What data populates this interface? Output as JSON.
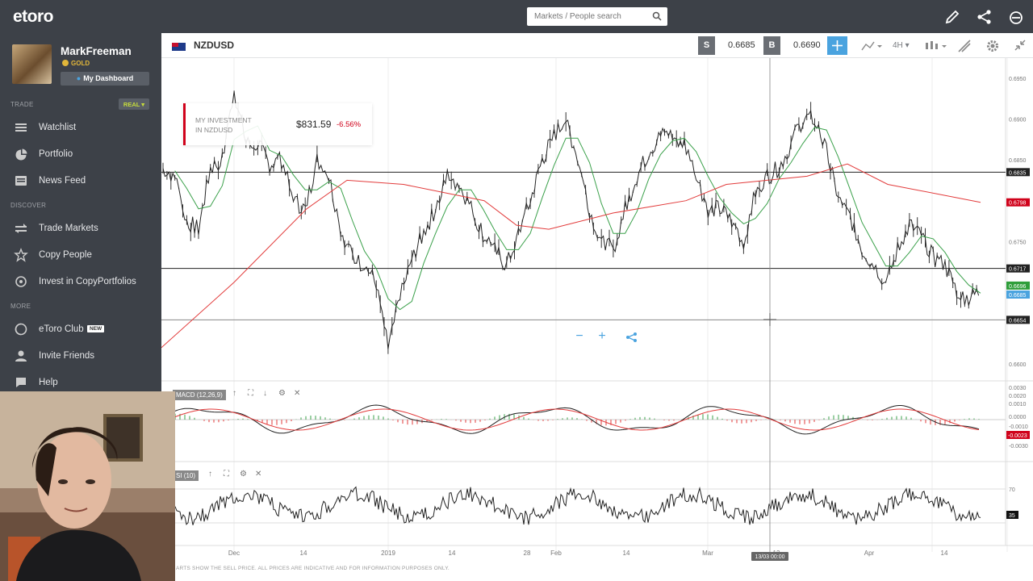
{
  "app": {
    "logo": "etoro"
  },
  "search": {
    "placeholder": "Markets / People search"
  },
  "topbar": {
    "icons": [
      "edit-icon",
      "share-icon",
      "etoro-icon"
    ]
  },
  "user": {
    "name": "MarkFreeman",
    "tier": "GOLD",
    "dashboard_label": "My Dashboard"
  },
  "sidebar": {
    "trade_section": "TRADE",
    "account_mode": "REAL",
    "discover_section": "DISCOVER",
    "more_section": "MORE",
    "items": [
      {
        "label": "Watchlist",
        "icon": "watchlist-icon"
      },
      {
        "label": "Portfolio",
        "icon": "pie-chart-icon"
      },
      {
        "label": "News Feed",
        "icon": "news-icon"
      },
      {
        "label": "Trade Markets",
        "icon": "trade-markets-icon"
      },
      {
        "label": "Copy People",
        "icon": "star-icon"
      },
      {
        "label": "Invest in CopyPortfolios",
        "icon": "copyportfolio-icon"
      },
      {
        "label": "eToro Club",
        "icon": "club-icon",
        "badge": "NEW"
      },
      {
        "label": "Invite Friends",
        "icon": "invite-icon"
      },
      {
        "label": "Help",
        "icon": "help-icon"
      }
    ]
  },
  "instrument": {
    "symbol": "NZDUSD",
    "sell_label": "S",
    "sell_price": "0.6685",
    "buy_label": "B",
    "buy_price": "0.6690",
    "timeframe": "4H"
  },
  "investment": {
    "label_line1": "MY INVESTMENT",
    "label_line2": "IN NZDUSD",
    "value": "$831.59",
    "change": "-6.56%"
  },
  "indicators": {
    "macd_label": "MACD (12,26,9)",
    "rsi_label": "SI (10)"
  },
  "disclaimer": "ARTS SHOW THE SELL PRICE. ALL PRICES ARE INDICATIVE AND FOR INFORMATION PURPOSES ONLY.",
  "chart_data": {
    "type": "line",
    "title": "",
    "price_axis_ticks": [
      "0.6950",
      "0.6900",
      "0.6850",
      "0.6750",
      "0.6600"
    ],
    "price_tags": [
      {
        "value": "0.6835",
        "color": "#222222"
      },
      {
        "value": "0.6798",
        "color": "#d0021b"
      },
      {
        "value": "0.6717",
        "color": "#222222"
      },
      {
        "value": "0.6696",
        "color": "#2e9e3a"
      },
      {
        "value": "0.6685",
        "color": "#4aa3df"
      },
      {
        "value": "0.6654",
        "color": "#222222"
      }
    ],
    "macd_ticks": [
      "0.0030",
      "0.0020",
      "0.0010",
      "0.0000",
      "-0.0010",
      "-0.0030"
    ],
    "macd_tag": "-0.0023",
    "rsi_ticks": [
      "70"
    ],
    "rsi_tag": "35",
    "x_ticks": [
      "Dec",
      "14",
      "2019",
      "14",
      "28",
      "Feb",
      "14",
      "Mar",
      "13",
      "Apr",
      "14"
    ],
    "crosshair_time": "13/03 00:00",
    "price": [
      0.684,
      0.683,
      0.6775,
      0.6765,
      0.684,
      0.685,
      0.6935,
      0.687,
      0.687,
      0.6845,
      0.685,
      0.68,
      0.679,
      0.685,
      0.683,
      0.6765,
      0.673,
      0.672,
      0.67,
      0.662,
      0.668,
      0.673,
      0.676,
      0.679,
      0.683,
      0.682,
      0.679,
      0.676,
      0.674,
      0.672,
      0.676,
      0.68,
      0.685,
      0.688,
      0.69,
      0.685,
      0.679,
      0.675,
      0.674,
      0.679,
      0.683,
      0.686,
      0.688,
      0.688,
      0.687,
      0.683,
      0.679,
      0.679,
      0.6775,
      0.675,
      0.681,
      0.683,
      0.684,
      0.687,
      0.69,
      0.69,
      0.686,
      0.68,
      0.678,
      0.674,
      0.672,
      0.67,
      0.674,
      0.677,
      0.676,
      0.673,
      0.672,
      0.669,
      0.668,
      0.669
    ]
  }
}
